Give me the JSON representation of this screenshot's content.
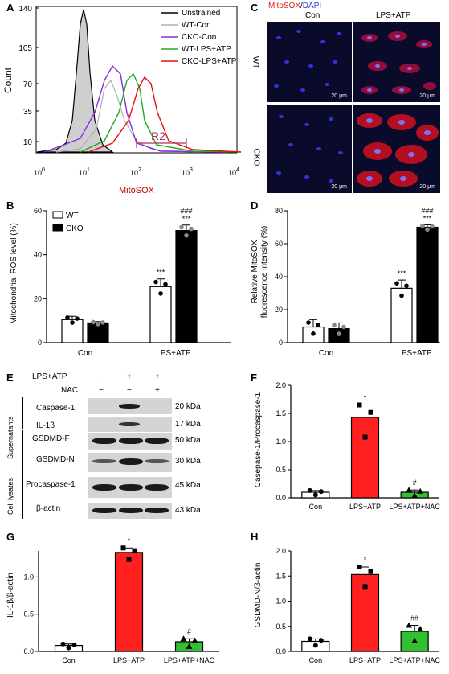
{
  "panels": {
    "A": {
      "label": "A",
      "xlabel": "MitoSOX",
      "ylabel": "Count",
      "gate": "R2",
      "yticks": [
        "10",
        "35",
        "70",
        "105",
        "140"
      ],
      "xticks": [
        "10",
        "10",
        "10",
        "10",
        "10"
      ],
      "xexp": [
        "0",
        "1",
        "2",
        "3",
        "4"
      ],
      "legend": [
        {
          "name": "Unstrained",
          "color": "#000000"
        },
        {
          "name": "WT-Con",
          "color": "#b0b0b0"
        },
        {
          "name": "CKO-Con",
          "color": "#8a2be2"
        },
        {
          "name": "WT-LPS+ATP",
          "color": "#22aa22"
        },
        {
          "name": "CKO-LPS+ATP",
          "color": "#e01010"
        }
      ]
    },
    "B": {
      "label": "B",
      "ylabel": "Mitochondrial ROS level (%)",
      "legend": [
        "WT",
        "CKO"
      ],
      "categories": [
        "Con",
        "LPS+ATP"
      ],
      "yticks": [
        "0",
        "20",
        "40",
        "60"
      ],
      "sig": [
        "***",
        "***",
        "###"
      ]
    },
    "C": {
      "label": "C",
      "stain_red": "MitoSOX",
      "stain_sep": "/",
      "stain_blue": "DAPI",
      "cols": [
        "Con",
        "LPS+ATP"
      ],
      "rows": [
        "WT",
        "CKO"
      ],
      "scale": "20 μm"
    },
    "D": {
      "label": "D",
      "ylabel1": "Relative MitoSOX",
      "ylabel2": "fluorescence intensity (%)",
      "categories": [
        "Con",
        "LPS+ATP"
      ],
      "yticks": [
        "0",
        "20",
        "40",
        "60",
        "80"
      ],
      "sig": [
        "***",
        "***",
        "###"
      ]
    },
    "E": {
      "label": "E",
      "treat": [
        "LPS+ATP",
        "NAC"
      ],
      "lps_signs": [
        "−",
        "+",
        "+"
      ],
      "nac_signs": [
        "−",
        "−",
        "+"
      ],
      "group_sup": "Supernatants",
      "group_cell": "Cell lysates",
      "bands": [
        {
          "name": "Caspase-1",
          "kda": "20 kDa"
        },
        {
          "name": "IL-1β",
          "kda": "17 kDa"
        },
        {
          "name": "GSDMD-F",
          "kda": "50 kDa"
        },
        {
          "name": "GSDMD-N",
          "kda": "30 kDa"
        },
        {
          "name": "Procaspase-1",
          "kda": "45 kDa"
        },
        {
          "name": "β-actin",
          "kda": "43 kDa"
        }
      ]
    },
    "F": {
      "label": "F",
      "ylabel": "Casepase-1/Procaspase-1",
      "yticks": [
        "0.0",
        "0.5",
        "1.0",
        "1.5",
        "2.0"
      ],
      "sig": [
        "*",
        "#"
      ]
    },
    "G": {
      "label": "G",
      "ylabel": "IL-1β/β-actin",
      "yticks": [
        "0.0",
        "0.5",
        "1.0"
      ],
      "sig": [
        "*",
        "#"
      ]
    },
    "H": {
      "label": "H",
      "ylabel": "GSDMD-N/β-actin",
      "yticks": [
        "0.0",
        "0.5",
        "1.0",
        "1.5",
        "2.0"
      ],
      "sig": [
        "*",
        "##"
      ]
    }
  },
  "chart_data": [
    {
      "panel": "B",
      "type": "bar",
      "categories": [
        "Con",
        "LPS+ATP"
      ],
      "series": [
        {
          "name": "WT",
          "color": "#ffffff",
          "values": [
            10.5,
            25.5
          ],
          "err": [
            1.5,
            3.5
          ]
        },
        {
          "name": "CKO",
          "color": "#000000",
          "values": [
            9,
            51
          ],
          "err": [
            0.6,
            2.5
          ]
        }
      ],
      "ylabel": "Mitochondrial ROS level (%)",
      "ylim": [
        0,
        60
      ]
    },
    {
      "panel": "D",
      "type": "bar",
      "categories": [
        "Con",
        "LPS+ATP"
      ],
      "series": [
        {
          "values": [
            9.5,
            33
          ],
          "err": [
            4.5,
            5
          ],
          "color": "#ffffff"
        },
        {
          "values": [
            8.5,
            70
          ],
          "err": [
            3.5,
            1.5
          ],
          "color": "#000000"
        }
      ],
      "ylabel": "Relative MitoSOX fluorescence intensity (%)",
      "ylim": [
        0,
        80
      ]
    },
    {
      "panel": "F",
      "type": "bar",
      "categories": [
        "Con",
        "LPS+ATP",
        "LPS+ATP+NAC"
      ],
      "values": [
        0.1,
        1.43,
        0.1
      ],
      "err": [
        0.03,
        0.22,
        0.04
      ],
      "colors": [
        "#ffffff",
        "#ff2020",
        "#30c030"
      ],
      "ylabel": "Casepase-1/Procaspase-1",
      "ylim": [
        0,
        2.0
      ]
    },
    {
      "panel": "G",
      "type": "bar",
      "categories": [
        "Con",
        "LPS+ATP",
        "LPS+ATP+NAC"
      ],
      "values": [
        0.08,
        1.33,
        0.13
      ],
      "err": [
        0.02,
        0.06,
        0.04
      ],
      "colors": [
        "#ffffff",
        "#ff2020",
        "#30c030"
      ],
      "ylabel": "IL-1β/β-actin",
      "ylim": [
        0,
        1.35
      ]
    },
    {
      "panel": "H",
      "type": "bar",
      "categories": [
        "Con",
        "LPS+ATP",
        "LPS+ATP+NAC"
      ],
      "values": [
        0.2,
        1.53,
        0.4
      ],
      "err": [
        0.05,
        0.15,
        0.12
      ],
      "colors": [
        "#ffffff",
        "#ff2020",
        "#30c030"
      ],
      "ylabel": "GSDMD-N/β-actin",
      "ylim": [
        0,
        2.0
      ]
    }
  ]
}
